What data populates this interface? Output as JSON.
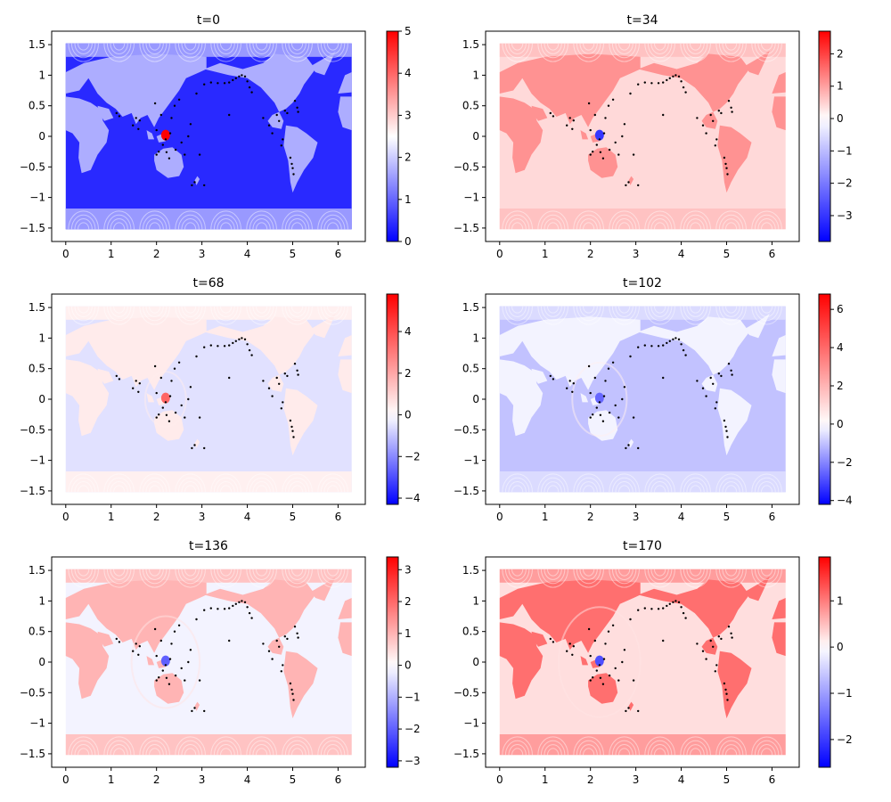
{
  "chart_data": [
    {
      "type": "scatter",
      "title": "t=0",
      "xlabel": "",
      "ylabel": "",
      "xlim": [
        -0.31,
        6.6
      ],
      "ylim": [
        -1.72,
        1.72
      ],
      "xticks": [
        0,
        1,
        2,
        3,
        4,
        5,
        6
      ],
      "yticks": [
        -1.5,
        -1.0,
        -0.5,
        0.0,
        0.5,
        1.0,
        1.5
      ],
      "grid": false,
      "colorbar": {
        "min": 0,
        "max": 5,
        "ticks": [
          0,
          1,
          2,
          3,
          4,
          5
        ]
      },
      "field": {
        "ocean": 0.4,
        "land": 1.7,
        "polar": 1.5,
        "source": 5
      },
      "colormap": [
        "#0000ff",
        "#ffffff",
        "#ff0000"
      ]
    },
    {
      "type": "scatter",
      "title": "t=34",
      "xlabel": "",
      "ylabel": "",
      "xlim": [
        -0.31,
        6.6
      ],
      "ylim": [
        -1.72,
        1.72
      ],
      "xticks": [
        0,
        1,
        2,
        3,
        4,
        5,
        6
      ],
      "yticks": [
        -1.5,
        -1.0,
        -0.5,
        0.0,
        0.5,
        1.0,
        1.5
      ],
      "grid": false,
      "colorbar": {
        "min": -3.8,
        "max": 2.7,
        "ticks": [
          -3,
          -2,
          -1,
          0,
          1,
          2
        ]
      },
      "field": {
        "ocean": 0.4,
        "land": 1.15,
        "polar": 0.65,
        "source": -3.0
      },
      "colormap": [
        "#0000ff",
        "#ffffff",
        "#ff0000"
      ]
    },
    {
      "type": "scatter",
      "title": "t=68",
      "xlabel": "",
      "ylabel": "",
      "xlim": [
        -0.31,
        6.6
      ],
      "ylim": [
        -1.72,
        1.72
      ],
      "xticks": [
        0,
        1,
        2,
        3,
        4,
        5,
        6
      ],
      "yticks": [
        -1.5,
        -1.0,
        -0.5,
        0.0,
        0.5,
        1.0,
        1.5
      ],
      "grid": false,
      "colorbar": {
        "min": -4.3,
        "max": 5.8,
        "ticks": [
          -4,
          -2,
          0,
          2,
          4
        ]
      },
      "field": {
        "ocean": -0.5,
        "land": 0.45,
        "polar": 0.35,
        "source": 3.5
      },
      "colormap": [
        "#0000ff",
        "#ffffff",
        "#ff0000"
      ]
    },
    {
      "type": "scatter",
      "title": "t=102",
      "xlabel": "",
      "ylabel": "",
      "xlim": [
        -0.31,
        6.6
      ],
      "ylim": [
        -1.72,
        1.72
      ],
      "xticks": [
        0,
        1,
        2,
        3,
        4,
        5,
        6
      ],
      "yticks": [
        -1.5,
        -1.0,
        -0.5,
        0.0,
        0.5,
        1.0,
        1.5
      ],
      "grid": false,
      "colorbar": {
        "min": -4.2,
        "max": 6.8,
        "ticks": [
          -4,
          -2,
          0,
          2,
          4,
          6
        ]
      },
      "field": {
        "ocean": -1.0,
        "land": -0.2,
        "polar": -0.6,
        "source": -2.5
      },
      "colormap": [
        "#0000ff",
        "#ffffff",
        "#ff0000"
      ]
    },
    {
      "type": "scatter",
      "title": "t=136",
      "xlabel": "",
      "ylabel": "",
      "xlim": [
        -0.31,
        6.6
      ],
      "ylim": [
        -1.72,
        1.72
      ],
      "xticks": [
        0,
        1,
        2,
        3,
        4,
        5,
        6
      ],
      "yticks": [
        -1.5,
        -1.0,
        -0.5,
        0.0,
        0.5,
        1.0,
        1.5
      ],
      "grid": false,
      "colorbar": {
        "min": -3.2,
        "max": 3.4,
        "ticks": [
          -3,
          -2,
          -1,
          0,
          1,
          2,
          3
        ]
      },
      "field": {
        "ocean": -0.15,
        "land": 1.0,
        "polar": 0.8,
        "source": -2.0
      },
      "colormap": [
        "#0000ff",
        "#ffffff",
        "#ff0000"
      ]
    },
    {
      "type": "scatter",
      "title": "t=170",
      "xlabel": "",
      "ylabel": "",
      "xlim": [
        -0.31,
        6.6
      ],
      "ylim": [
        -1.72,
        1.72
      ],
      "xticks": [
        0,
        1,
        2,
        3,
        4,
        5,
        6
      ],
      "yticks": [
        -1.5,
        -1.0,
        -0.5,
        0.0,
        0.5,
        1.0,
        1.5
      ],
      "grid": false,
      "colorbar": {
        "min": -2.6,
        "max": 1.95,
        "ticks": [
          -2,
          -1,
          0,
          1
        ]
      },
      "field": {
        "ocean": 0.25,
        "land": 1.1,
        "polar": 0.75,
        "source": -1.8
      },
      "colormap": [
        "#0000ff",
        "#ffffff",
        "#ff0000"
      ]
    }
  ],
  "stations": {
    "color": "#000000",
    "points": [
      [
        1.12,
        0.38
      ],
      [
        1.18,
        0.33
      ],
      [
        1.48,
        0.18
      ],
      [
        1.55,
        0.3
      ],
      [
        1.6,
        0.12
      ],
      [
        1.63,
        0.26
      ],
      [
        1.97,
        0.54
      ],
      [
        2.0,
        0.1
      ],
      [
        2.05,
        -0.25
      ],
      [
        2.14,
        -0.14
      ],
      [
        2.2,
        -0.05
      ],
      [
        2.22,
        -0.26
      ],
      [
        2.28,
        -0.36
      ],
      [
        2.3,
        0.05
      ],
      [
        2.33,
        0.3
      ],
      [
        2.4,
        0.5
      ],
      [
        2.42,
        -0.22
      ],
      [
        2.5,
        0.6
      ],
      [
        2.55,
        -0.1
      ],
      [
        2.62,
        -0.3
      ],
      [
        2.7,
        0.0
      ],
      [
        2.75,
        0.2
      ],
      [
        2.78,
        -0.8
      ],
      [
        2.84,
        -0.75
      ],
      [
        2.88,
        0.7
      ],
      [
        2.95,
        -0.3
      ],
      [
        3.05,
        0.85
      ],
      [
        3.2,
        0.88
      ],
      [
        3.35,
        0.87
      ],
      [
        3.5,
        0.87
      ],
      [
        3.6,
        0.88
      ],
      [
        3.68,
        0.92
      ],
      [
        3.75,
        0.95
      ],
      [
        3.82,
        0.98
      ],
      [
        3.88,
        1.0
      ],
      [
        3.95,
        0.98
      ],
      [
        4.0,
        0.9
      ],
      [
        4.05,
        0.8
      ],
      [
        4.1,
        0.72
      ],
      [
        3.6,
        0.35
      ],
      [
        4.35,
        0.3
      ],
      [
        4.48,
        0.18
      ],
      [
        4.55,
        0.05
      ],
      [
        4.65,
        0.35
      ],
      [
        4.7,
        0.25
      ],
      [
        4.75,
        -0.15
      ],
      [
        4.78,
        -0.05
      ],
      [
        4.83,
        0.42
      ],
      [
        4.88,
        0.38
      ],
      [
        4.95,
        -0.35
      ],
      [
        4.98,
        -0.45
      ],
      [
        5.0,
        -0.52
      ],
      [
        5.02,
        -0.62
      ],
      [
        5.05,
        0.58
      ],
      [
        5.1,
        0.47
      ],
      [
        5.12,
        0.4
      ],
      [
        3.05,
        -0.8
      ],
      [
        2.0,
        -0.3
      ],
      [
        2.1,
        0.35
      ]
    ]
  }
}
